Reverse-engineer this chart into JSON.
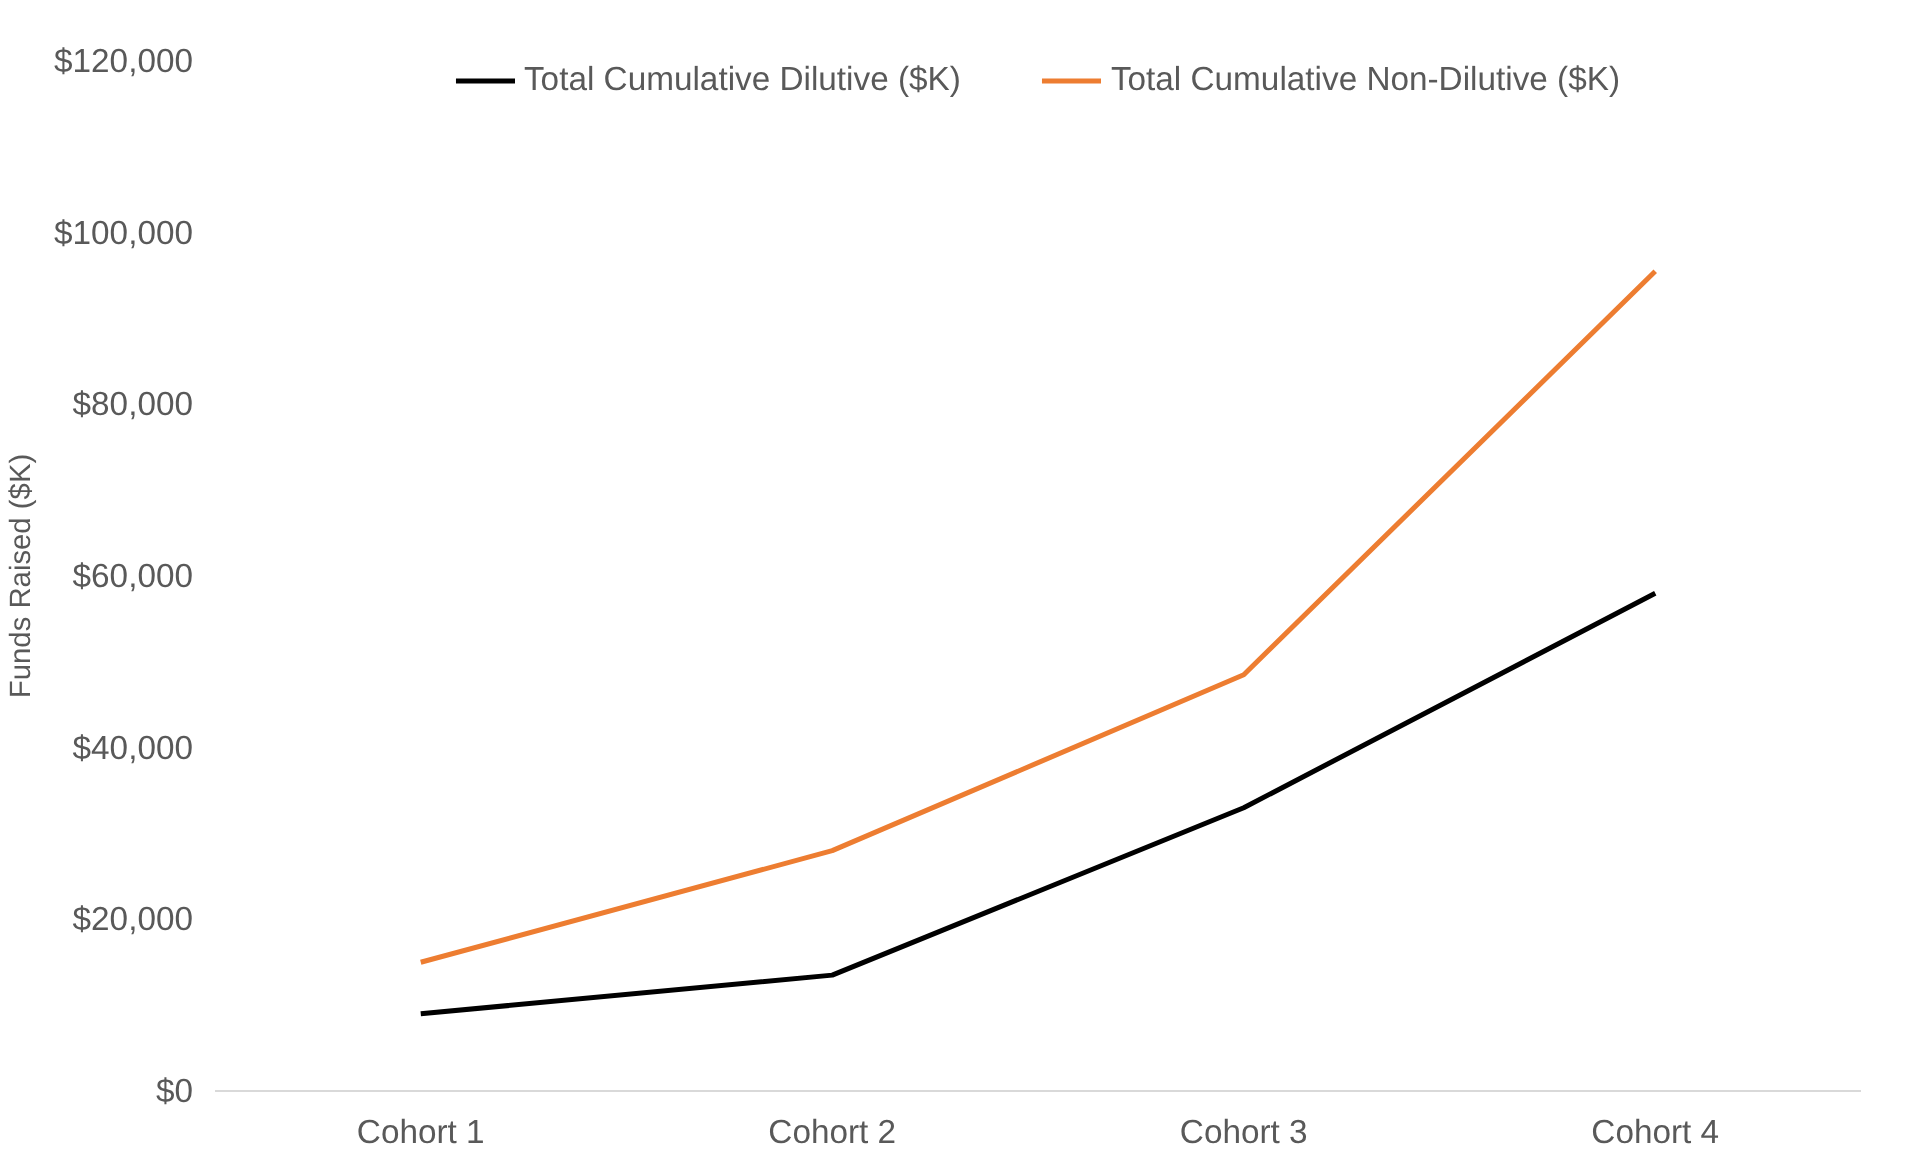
{
  "chart_data": {
    "type": "line",
    "ylabel": "Funds Raised ($K)",
    "categories": [
      "Cohort 1",
      "Cohort 2",
      "Cohort 3",
      "Cohort 4"
    ],
    "series": [
      {
        "name": "Total Cumulative Dilutive ($K)",
        "color": "#000000",
        "values": [
          9000,
          13500,
          33000,
          58000
        ]
      },
      {
        "name": "Total Cumulative Non-Dilutive ($K)",
        "color": "#ed7d31",
        "values": [
          15000,
          28000,
          48500,
          95500
        ]
      }
    ],
    "ylim": [
      0,
      120000
    ],
    "yticks": [
      {
        "value": 0,
        "label": "$0"
      },
      {
        "value": 20000,
        "label": "$20,000"
      },
      {
        "value": 40000,
        "label": "$40,000"
      },
      {
        "value": 60000,
        "label": "$60,000"
      },
      {
        "value": 80000,
        "label": "$80,000"
      },
      {
        "value": 100000,
        "label": "$100,000"
      },
      {
        "value": 120000,
        "label": "$120,000"
      }
    ],
    "grid": false,
    "legend": "top",
    "marker": "none",
    "line_style": "solid"
  }
}
